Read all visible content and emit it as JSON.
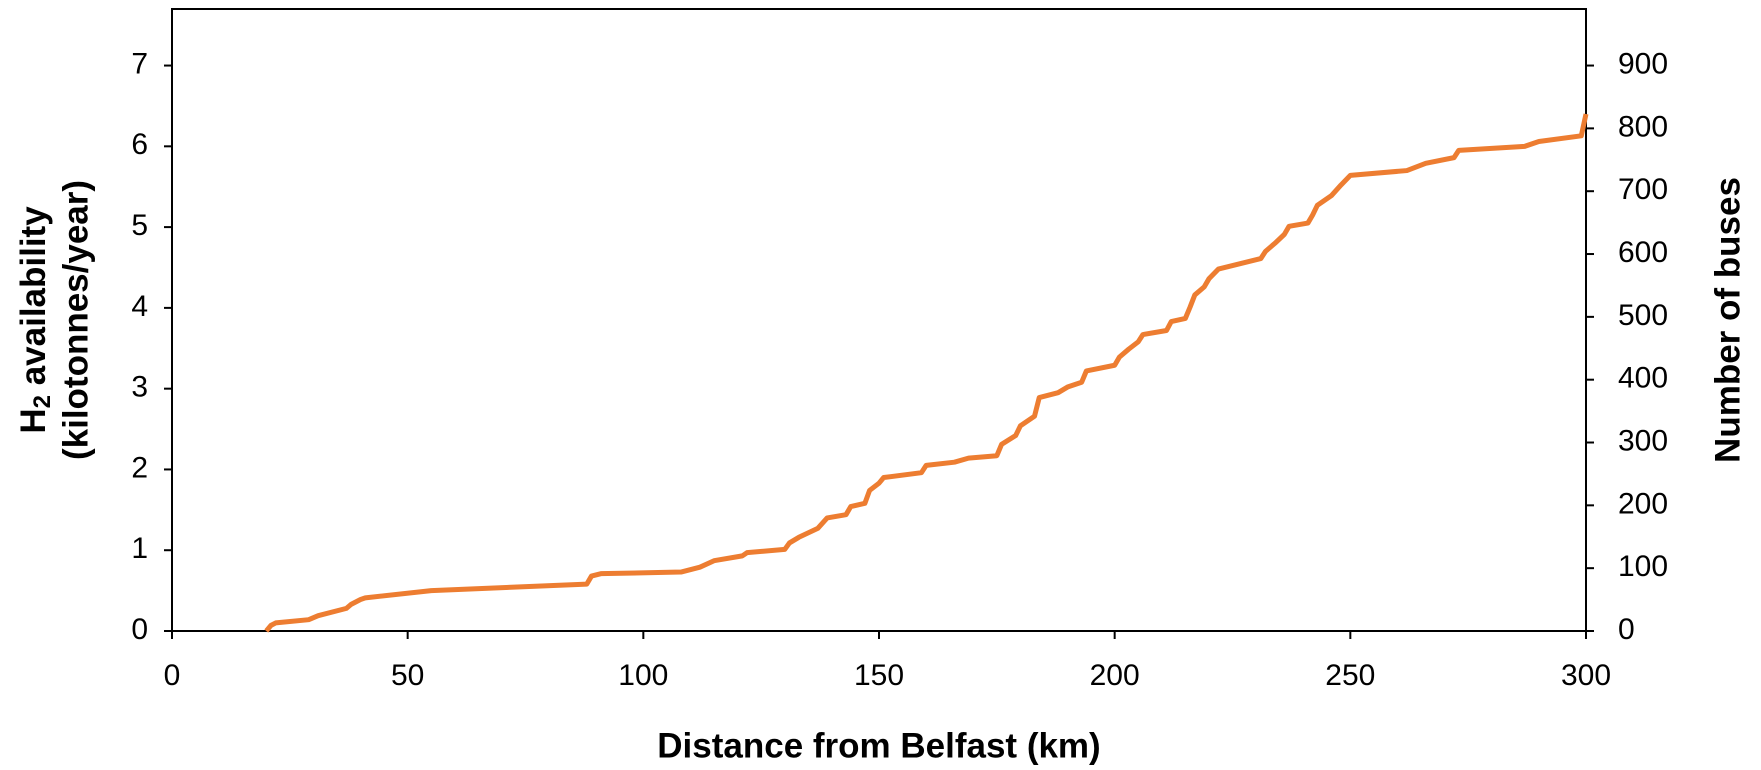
{
  "chart_data": {
    "type": "line",
    "xlabel": "Distance from Belfast (km)",
    "ylabel": {
      "main": "H",
      "sub": "2",
      "rest": " availability",
      "line2": "(kilotonnes/year)"
    },
    "y2label": "Number of buses",
    "xlim": [
      0,
      300
    ],
    "xticks": [
      0,
      50,
      100,
      150,
      200,
      250,
      300
    ],
    "ylim": [
      0,
      7.7
    ],
    "yticks": [
      0,
      1,
      2,
      3,
      4,
      5,
      6,
      7
    ],
    "y2lim": [
      0,
      990
    ],
    "y2ticks": [
      0,
      100,
      200,
      300,
      400,
      500,
      600,
      700,
      800,
      900
    ],
    "x": [
      20,
      21,
      22,
      29,
      31,
      37,
      38,
      40,
      41,
      55,
      88,
      89,
      91,
      108,
      112,
      115,
      121,
      122,
      130,
      131,
      133,
      137,
      139,
      143,
      144,
      147,
      148,
      150,
      151,
      159,
      160,
      166,
      169,
      175,
      176,
      179,
      180,
      183,
      184,
      188,
      190,
      193,
      194,
      200,
      201,
      203,
      205,
      206,
      211,
      212,
      215,
      216,
      217,
      219,
      220,
      222,
      231,
      232,
      234,
      236,
      237,
      241,
      242,
      243,
      246,
      248,
      250,
      262,
      266,
      272,
      273,
      287,
      290,
      299,
      300
    ],
    "series": [
      {
        "color": "#ed7d31",
        "values": [
          0,
          0.07,
          0.1,
          0.14,
          0.19,
          0.28,
          0.33,
          0.39,
          0.41,
          0.5,
          0.58,
          0.68,
          0.71,
          0.73,
          0.79,
          0.87,
          0.93,
          0.97,
          1.01,
          1.09,
          1.16,
          1.27,
          1.4,
          1.44,
          1.54,
          1.58,
          1.74,
          1.83,
          1.9,
          1.96,
          2.05,
          2.09,
          2.14,
          2.17,
          2.31,
          2.42,
          2.54,
          2.66,
          2.89,
          2.95,
          3.02,
          3.08,
          3.22,
          3.29,
          3.39,
          3.49,
          3.58,
          3.67,
          3.72,
          3.83,
          3.87,
          4.01,
          4.16,
          4.26,
          4.36,
          4.48,
          4.61,
          4.7,
          4.8,
          4.91,
          5.01,
          5.05,
          5.15,
          5.27,
          5.39,
          5.52,
          5.64,
          5.7,
          5.79,
          5.86,
          5.95,
          6.0,
          6.06,
          6.13,
          6.4
        ]
      }
    ]
  }
}
